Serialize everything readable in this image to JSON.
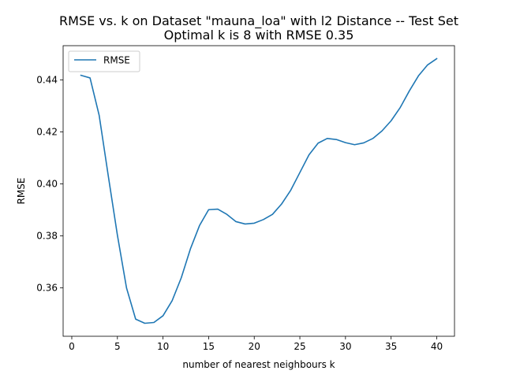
{
  "chart_data": {
    "type": "line",
    "title": "RMSE vs. k on Dataset \"mauna_loa\" with l2 Distance -- Test Set",
    "subtitle": "Optimal k is 8 with RMSE 0.35",
    "xlabel": "number of nearest neighbours k",
    "ylabel": "RMSE",
    "xlim": [
      -0.95,
      41.95
    ],
    "ylim": [
      0.3414,
      0.4532
    ],
    "xticks": [
      0,
      5,
      10,
      15,
      20,
      25,
      30,
      35,
      40
    ],
    "xtick_labels": [
      "0",
      "5",
      "10",
      "15",
      "20",
      "25",
      "30",
      "35",
      "40"
    ],
    "yticks": [
      0.36,
      0.38,
      0.4,
      0.42,
      0.44
    ],
    "ytick_labels": [
      "0.36",
      "0.38",
      "0.40",
      "0.42",
      "0.44"
    ],
    "grid": false,
    "legend_position": "top-left",
    "series": [
      {
        "name": "RMSE",
        "color": "#1f77b4",
        "x": [
          1,
          2,
          3,
          4,
          5,
          6,
          7,
          8,
          9,
          10,
          11,
          12,
          13,
          14,
          15,
          16,
          17,
          18,
          19,
          20,
          21,
          22,
          23,
          24,
          25,
          26,
          27,
          28,
          29,
          30,
          31,
          32,
          33,
          34,
          35,
          36,
          37,
          38,
          39,
          40
        ],
        "y": [
          0.4418,
          0.4408,
          0.4264,
          0.4031,
          0.3803,
          0.36,
          0.348,
          0.3464,
          0.3467,
          0.3493,
          0.3551,
          0.3639,
          0.375,
          0.384,
          0.3901,
          0.3903,
          0.3883,
          0.3855,
          0.3846,
          0.3849,
          0.3863,
          0.3883,
          0.3923,
          0.3976,
          0.4044,
          0.4112,
          0.4157,
          0.4175,
          0.4171,
          0.4159,
          0.4151,
          0.4158,
          0.4175,
          0.4204,
          0.4243,
          0.4294,
          0.4358,
          0.4416,
          0.4458,
          0.4482
        ]
      }
    ]
  }
}
